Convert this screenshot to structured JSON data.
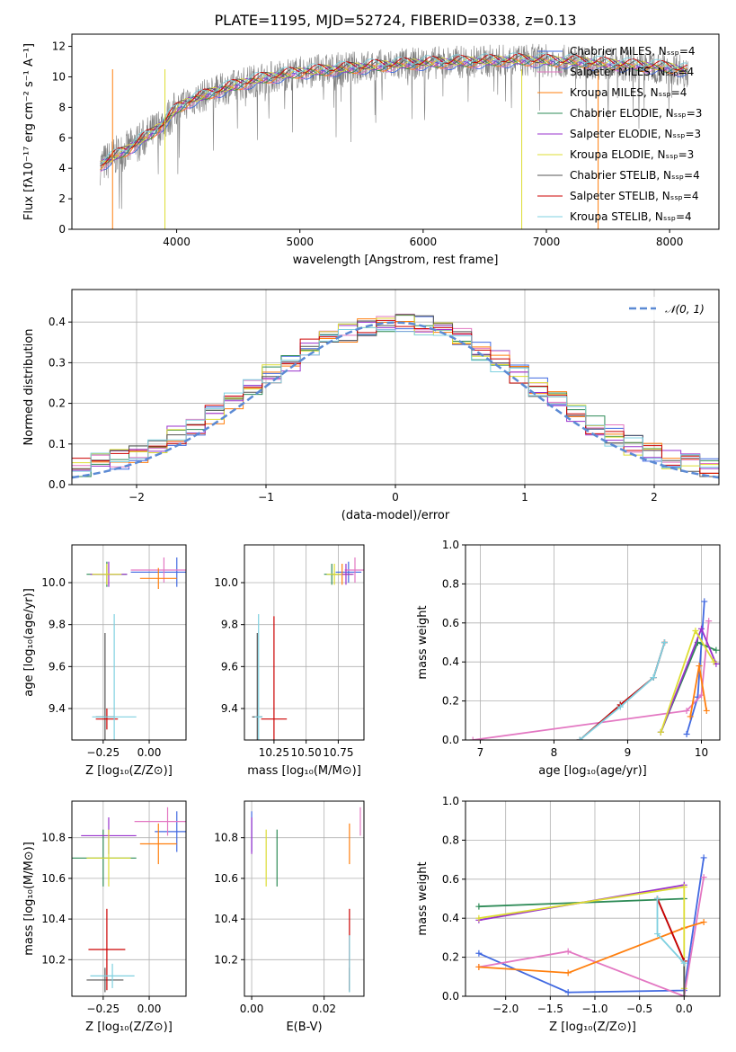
{
  "colors": {
    "chabrier_miles": "#4169e1",
    "salpeter_miles": "#e377c2",
    "kroupa_miles": "#ff7f0e",
    "chabrier_elodie": "#2e8b57",
    "salpeter_elodie": "#9932cc",
    "kroupa_elodie": "#dddd33",
    "chabrier_stelib": "#555555",
    "salpeter_stelib": "#cc0000",
    "kroupa_stelib": "#7fd0e0",
    "data": "#808080",
    "gauss": "#5b8ad4"
  },
  "chart_data": [
    {
      "id": "spectrum",
      "type": "line",
      "title": "PLATE=1195, MJD=52724, FIBERID=0338, z=0.13",
      "xlabel": "wavelength [Angstrom, rest frame]",
      "ylabel": "Flux [fλ10⁻¹⁷ erg cm⁻² s⁻¹ A⁻¹]",
      "xlim": [
        3150,
        8400
      ],
      "ylim": [
        0,
        12.8
      ],
      "xticks": [
        4000,
        5000,
        6000,
        7000,
        8000
      ],
      "yticks": [
        0,
        2,
        4,
        6,
        8,
        10,
        12
      ],
      "grid": false,
      "legend_position": "upper-right",
      "legend": [
        {
          "label": "Chabrier MILES, Nₛₛₚ=4",
          "color": "#4169e1"
        },
        {
          "label": "Salpeter MILES, Nₛₛₚ=4",
          "color": "#e377c2"
        },
        {
          "label": "Kroupa MILES, Nₛₛₚ=4",
          "color": "#ff7f0e"
        },
        {
          "label": "Chabrier ELODIE, Nₛₛₚ=3",
          "color": "#2e8b57"
        },
        {
          "label": "Salpeter ELODIE, Nₛₛₚ=3",
          "color": "#9932cc"
        },
        {
          "label": "Kroupa ELODIE, Nₛₛₚ=3",
          "color": "#dddd33"
        },
        {
          "label": "Chabrier STELIB, Nₛₛₚ=4",
          "color": "#555555"
        },
        {
          "label": "Salpeter STELIB, Nₛₛₚ=4",
          "color": "#cc0000"
        },
        {
          "label": "Kroupa STELIB, Nₛₛₚ=4",
          "color": "#7fd0e0"
        }
      ],
      "continuum": {
        "x": [
          3380,
          3500,
          3600,
          3700,
          3800,
          3900,
          4000,
          4100,
          4200,
          4300,
          4500,
          4700,
          5000,
          5300,
          5600,
          6000,
          6400,
          6800,
          7200,
          7600,
          8000,
          8150
        ],
        "y": [
          4.2,
          4.8,
          5.2,
          5.8,
          6.3,
          7.0,
          7.9,
          8.4,
          8.7,
          9.0,
          9.5,
          9.9,
          10.3,
          10.5,
          10.7,
          10.9,
          11.0,
          11.1,
          11.0,
          10.8,
          10.6,
          10.4
        ]
      }
    },
    {
      "id": "residuals",
      "type": "bar",
      "xlabel": "(data-model)/error",
      "ylabel": "Normed distribution",
      "xlim": [
        -2.5,
        2.5
      ],
      "ylim": [
        0,
        0.48
      ],
      "xticks": [
        -2,
        -1,
        0,
        1,
        2
      ],
      "yticks": [
        0.0,
        0.1,
        0.2,
        0.3,
        0.4
      ],
      "grid": true,
      "legend_position": "upper-right",
      "legend": [
        {
          "label": "𝒩(0, 1)",
          "color": "#5b8ad4"
        }
      ],
      "histogram_peak": 0.465
    },
    {
      "id": "age_vs_Z",
      "type": "scatter",
      "xlabel": "Z [log₁₀(Z/Z⊙)]",
      "ylabel": "age  [log₁₀(age/yr)]",
      "xlim": [
        -0.42,
        0.2
      ],
      "ylim": [
        9.25,
        10.18
      ],
      "xticks": [
        -0.25,
        0.0
      ],
      "yticks": [
        9.4,
        9.6,
        9.8,
        10.0
      ],
      "grid": true,
      "points": [
        {
          "model": "Chabrier MILES",
          "x": 0.15,
          "y": 10.05,
          "xerr": 0.25,
          "yerr": 0.07
        },
        {
          "model": "Salpeter MILES",
          "x": 0.08,
          "y": 10.06,
          "xerr": 0.18,
          "yerr": 0.06
        },
        {
          "model": "Kroupa MILES",
          "x": 0.05,
          "y": 10.02,
          "xerr": 0.1,
          "yerr": 0.05
        },
        {
          "model": "Chabrier ELODIE",
          "x": -0.23,
          "y": 10.04,
          "xerr": 0.11,
          "yerr": 0.06
        },
        {
          "model": "Salpeter ELODIE",
          "x": -0.22,
          "y": 10.04,
          "xerr": 0.1,
          "yerr": 0.06
        },
        {
          "model": "Kroupa ELODIE",
          "x": -0.23,
          "y": 10.04,
          "xerr": 0.08,
          "yerr": 0.05
        },
        {
          "model": "Chabrier STELIB",
          "x": -0.24,
          "y": 9.36,
          "xerr": 0.05,
          "yerr": 0.4
        },
        {
          "model": "Salpeter STELIB",
          "x": -0.23,
          "y": 9.35,
          "xerr": 0.06,
          "yerr": 0.05
        },
        {
          "model": "Kroupa STELIB",
          "x": -0.19,
          "y": 9.36,
          "xerr": 0.12,
          "yerr": 0.49
        }
      ]
    },
    {
      "id": "age_vs_mass",
      "type": "scatter",
      "xlabel": "mass [log₁₀(M/M⊙)]",
      "ylabel": "",
      "xlim": [
        10.02,
        10.95
      ],
      "ylim": [
        9.25,
        10.18
      ],
      "xticks": [
        10.25,
        10.5,
        10.75
      ],
      "yticks": [
        9.4,
        9.6,
        9.8,
        10.0
      ],
      "grid": true,
      "points": [
        {
          "model": "Chabrier MILES",
          "x": 10.83,
          "y": 10.05,
          "xerr": 0.1,
          "yerr": 0.05
        },
        {
          "model": "Salpeter MILES",
          "x": 10.88,
          "y": 10.06,
          "xerr": 0.08,
          "yerr": 0.06
        },
        {
          "model": "Kroupa MILES",
          "x": 10.78,
          "y": 10.04,
          "xerr": 0.08,
          "yerr": 0.05
        },
        {
          "model": "Chabrier ELODIE",
          "x": 10.7,
          "y": 10.04,
          "xerr": 0.06,
          "yerr": 0.05
        },
        {
          "model": "Salpeter ELODIE",
          "x": 10.81,
          "y": 10.04,
          "xerr": 0.06,
          "yerr": 0.05
        },
        {
          "model": "Kroupa ELODIE",
          "x": 10.72,
          "y": 10.04,
          "xerr": 0.06,
          "yerr": 0.05
        },
        {
          "model": "Chabrier STELIB",
          "x": 10.12,
          "y": 9.36,
          "xerr": 0.04,
          "yerr": 0.4
        },
        {
          "model": "Salpeter STELIB",
          "x": 10.25,
          "y": 9.35,
          "xerr": 0.1,
          "yerr": 0.49
        },
        {
          "model": "Kroupa STELIB",
          "x": 10.13,
          "y": 9.36,
          "xerr": 0.03,
          "yerr": 0.49
        }
      ]
    },
    {
      "id": "weights_vs_age",
      "type": "line",
      "xlabel": "age  [log₁₀(age/yr)]",
      "ylabel": "mass weight",
      "xlim": [
        6.8,
        10.25
      ],
      "ylim": [
        0,
        1.0
      ],
      "xticks": [
        7,
        8,
        9,
        10
      ],
      "yticks": [
        0.0,
        0.2,
        0.4,
        0.6,
        0.8,
        1.0
      ],
      "grid": true,
      "series": [
        {
          "model": "Chabrier MILES",
          "x": [
            9.8,
            9.95,
            10.04
          ],
          "y": [
            0.03,
            0.22,
            0.71
          ]
        },
        {
          "model": "Salpeter MILES",
          "x": [
            6.9,
            9.8,
            10.0,
            10.1
          ],
          "y": [
            0.0,
            0.15,
            0.23,
            0.61
          ]
        },
        {
          "model": "Kroupa MILES",
          "x": [
            9.85,
            9.97,
            10.07
          ],
          "y": [
            0.12,
            0.38,
            0.15
          ]
        },
        {
          "model": "Chabrier ELODIE",
          "x": [
            9.45,
            9.95,
            10.2
          ],
          "y": [
            0.04,
            0.5,
            0.46
          ]
        },
        {
          "model": "Salpeter ELODIE",
          "x": [
            9.45,
            10.0,
            10.2
          ],
          "y": [
            0.04,
            0.57,
            0.39
          ]
        },
        {
          "model": "Kroupa ELODIE",
          "x": [
            9.45,
            9.92,
            10.17
          ],
          "y": [
            0.04,
            0.56,
            0.4
          ]
        },
        {
          "model": "Chabrier STELIB",
          "x": [
            8.35,
            8.9,
            9.35,
            9.5
          ],
          "y": [
            0.0,
            0.18,
            0.32,
            0.5
          ]
        },
        {
          "model": "Salpeter STELIB",
          "x": [
            8.35,
            8.9,
            9.35,
            9.5
          ],
          "y": [
            0.0,
            0.18,
            0.32,
            0.5
          ]
        },
        {
          "model": "Kroupa STELIB",
          "x": [
            8.35,
            8.9,
            9.35,
            9.5
          ],
          "y": [
            0.0,
            0.17,
            0.32,
            0.5
          ]
        }
      ]
    },
    {
      "id": "mass_vs_Z",
      "type": "scatter",
      "xlabel": "Z [log₁₀(Z/Z⊙)]",
      "ylabel": "mass [log₁₀(M/M⊙)]",
      "xlim": [
        -0.42,
        0.2
      ],
      "ylim": [
        10.02,
        10.98
      ],
      "xticks": [
        -0.25,
        0.0
      ],
      "yticks": [
        10.2,
        10.4,
        10.6,
        10.8
      ],
      "grid": true,
      "points": [
        {
          "model": "Chabrier MILES",
          "x": 0.15,
          "y": 10.83,
          "xerr": 0.12,
          "yerr": 0.1
        },
        {
          "model": "Salpeter MILES",
          "x": 0.1,
          "y": 10.88,
          "xerr": 0.18,
          "yerr": 0.07
        },
        {
          "model": "Kroupa MILES",
          "x": 0.05,
          "y": 10.77,
          "xerr": 0.1,
          "yerr": 0.1
        },
        {
          "model": "Chabrier ELODIE",
          "x": -0.25,
          "y": 10.7,
          "xerr": 0.18,
          "yerr": 0.14
        },
        {
          "model": "Salpeter ELODIE",
          "x": -0.22,
          "y": 10.81,
          "xerr": 0.15,
          "yerr": 0.09
        },
        {
          "model": "Kroupa ELODIE",
          "x": -0.22,
          "y": 10.7,
          "xerr": 0.12,
          "yerr": 0.14
        },
        {
          "model": "Chabrier STELIB",
          "x": -0.24,
          "y": 10.1,
          "xerr": 0.1,
          "yerr": 0.06
        },
        {
          "model": "Salpeter STELIB",
          "x": -0.23,
          "y": 10.25,
          "xerr": 0.1,
          "yerr": 0.2
        },
        {
          "model": "Kroupa STELIB",
          "x": -0.2,
          "y": 10.12,
          "xerr": 0.12,
          "yerr": 0.06
        }
      ]
    },
    {
      "id": "mass_vs_ebv",
      "type": "scatter",
      "xlabel": "E(B-V)",
      "ylabel": "",
      "xlim": [
        -0.002,
        0.031
      ],
      "ylim": [
        10.02,
        10.98
      ],
      "xticks": [
        0.0,
        0.02
      ],
      "yticks": [
        10.2,
        10.4,
        10.6,
        10.8
      ],
      "grid": true,
      "points": [
        {
          "model": "Chabrier MILES",
          "x": 0.0,
          "y": 10.83,
          "xerr": 0,
          "yerr": 0.1
        },
        {
          "model": "Salpeter MILES",
          "x": 0.03,
          "y": 10.88,
          "xerr": 0,
          "yerr": 0.07
        },
        {
          "model": "Kroupa MILES",
          "x": 0.027,
          "y": 10.77,
          "xerr": 0,
          "yerr": 0.1
        },
        {
          "model": "Chabrier ELODIE",
          "x": 0.007,
          "y": 10.7,
          "xerr": 0,
          "yerr": 0.14
        },
        {
          "model": "Salpeter ELODIE",
          "x": 0.0,
          "y": 10.81,
          "xerr": 0,
          "yerr": 0.09
        },
        {
          "model": "Kroupa ELODIE",
          "x": 0.004,
          "y": 10.7,
          "xerr": 0,
          "yerr": 0.14
        },
        {
          "model": "Chabrier STELIB",
          "x": 0.027,
          "y": 10.1,
          "xerr": 0,
          "yerr": 0.06
        },
        {
          "model": "Salpeter STELIB",
          "x": 0.027,
          "y": 10.25,
          "xerr": 0,
          "yerr": 0.2
        },
        {
          "model": "Kroupa STELIB",
          "x": 0.027,
          "y": 10.18,
          "xerr": 0,
          "yerr": 0.14
        }
      ]
    },
    {
      "id": "weights_vs_Z",
      "type": "line",
      "xlabel": "Z [log₁₀(Z/Z⊙)]",
      "ylabel": "mass weight",
      "xlim": [
        -2.45,
        0.4
      ],
      "ylim": [
        0,
        1.0
      ],
      "xticks": [
        -2.0,
        -1.5,
        -1.0,
        -0.5,
        0.0
      ],
      "yticks": [
        0.0,
        0.2,
        0.4,
        0.6,
        0.8,
        1.0
      ],
      "grid": true,
      "series": [
        {
          "model": "Chabrier MILES",
          "x": [
            -2.3,
            -1.3,
            0.0,
            0.22
          ],
          "y": [
            0.22,
            0.02,
            0.03,
            0.71
          ]
        },
        {
          "model": "Salpeter MILES",
          "x": [
            -2.3,
            -1.3,
            0.0,
            0.22
          ],
          "y": [
            0.15,
            0.23,
            0.0,
            0.61
          ]
        },
        {
          "model": "Kroupa MILES",
          "x": [
            -2.3,
            -1.3,
            0.0,
            0.22
          ],
          "y": [
            0.15,
            0.12,
            0.35,
            0.38
          ]
        },
        {
          "model": "Chabrier ELODIE",
          "x": [
            -2.3,
            0.0
          ],
          "y": [
            0.46,
            0.5
          ]
        },
        {
          "model": "Salpeter ELODIE",
          "x": [
            -2.3,
            0.0
          ],
          "y": [
            0.39,
            0.57
          ]
        },
        {
          "model": "Kroupa ELODIE",
          "x": [
            -2.3,
            0.0,
            0.0
          ],
          "y": [
            0.4,
            0.56,
            0.04
          ]
        },
        {
          "model": "Chabrier STELIB",
          "x": [
            -0.3,
            0.0,
            0.0
          ],
          "y": [
            0.5,
            0.18,
            0.0
          ]
        },
        {
          "model": "Salpeter STELIB",
          "x": [
            -0.3,
            0.0
          ],
          "y": [
            0.5,
            0.18
          ]
        },
        {
          "model": "Kroupa STELIB",
          "x": [
            -0.3,
            -0.3,
            0.0
          ],
          "y": [
            0.5,
            0.32,
            0.17
          ]
        }
      ]
    }
  ]
}
